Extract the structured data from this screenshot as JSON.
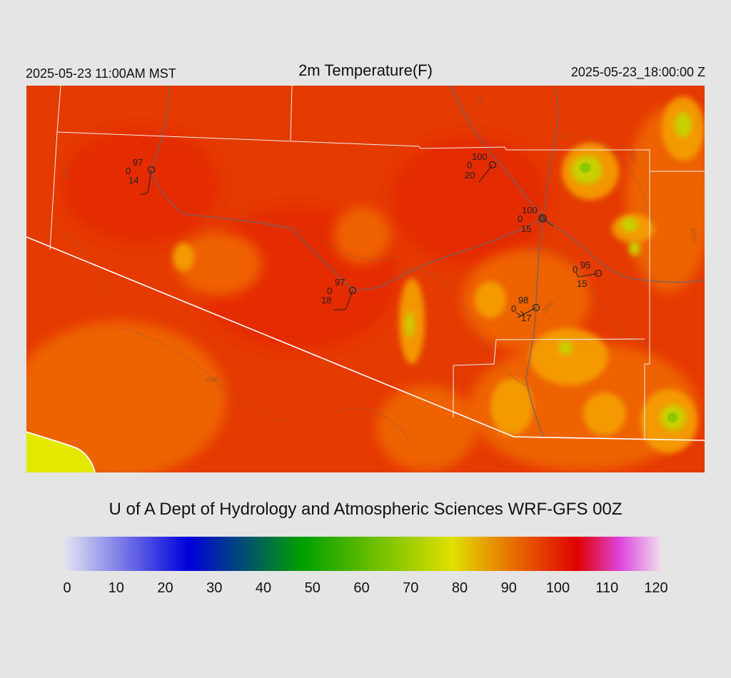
{
  "header": {
    "local_time": "2025-05-23 11:00AM MST",
    "title": "2m Temperature(F)",
    "valid_time": "2025-05-23_18:00:00 Z"
  },
  "footer": {
    "credit": "U of A Dept of Hydrology and Atmospheric Sciences WRF-GFS 00Z"
  },
  "colorbar": {
    "ticks": [
      "0",
      "10",
      "20",
      "30",
      "40",
      "50",
      "60",
      "70",
      "80",
      "90",
      "100",
      "110",
      "120"
    ],
    "range": [
      0,
      120
    ],
    "colors": {
      "low": "#e6e6f2",
      "blue": "#0000dd",
      "green": "#00a000",
      "yellow": "#e0e000",
      "orange": "#e87000",
      "red": "#e00000",
      "magenta": "#dd44dd",
      "high": "#f0e0f0"
    }
  },
  "map": {
    "background_color": "#e53a00",
    "contour_labels": [
      "1000",
      "2000",
      "3000"
    ],
    "stations": [
      {
        "temp": "97",
        "dew": "0",
        "gust": "14"
      },
      {
        "temp": "100",
        "dew": "0",
        "gust": "20"
      },
      {
        "temp": "100",
        "dew": "0",
        "gust": "15"
      },
      {
        "temp": "97",
        "dew": "0",
        "gust": "18"
      },
      {
        "temp": "95",
        "dew": "0",
        "gust": "15"
      },
      {
        "temp": "98",
        "dew": "0",
        "gust": "17"
      }
    ]
  }
}
